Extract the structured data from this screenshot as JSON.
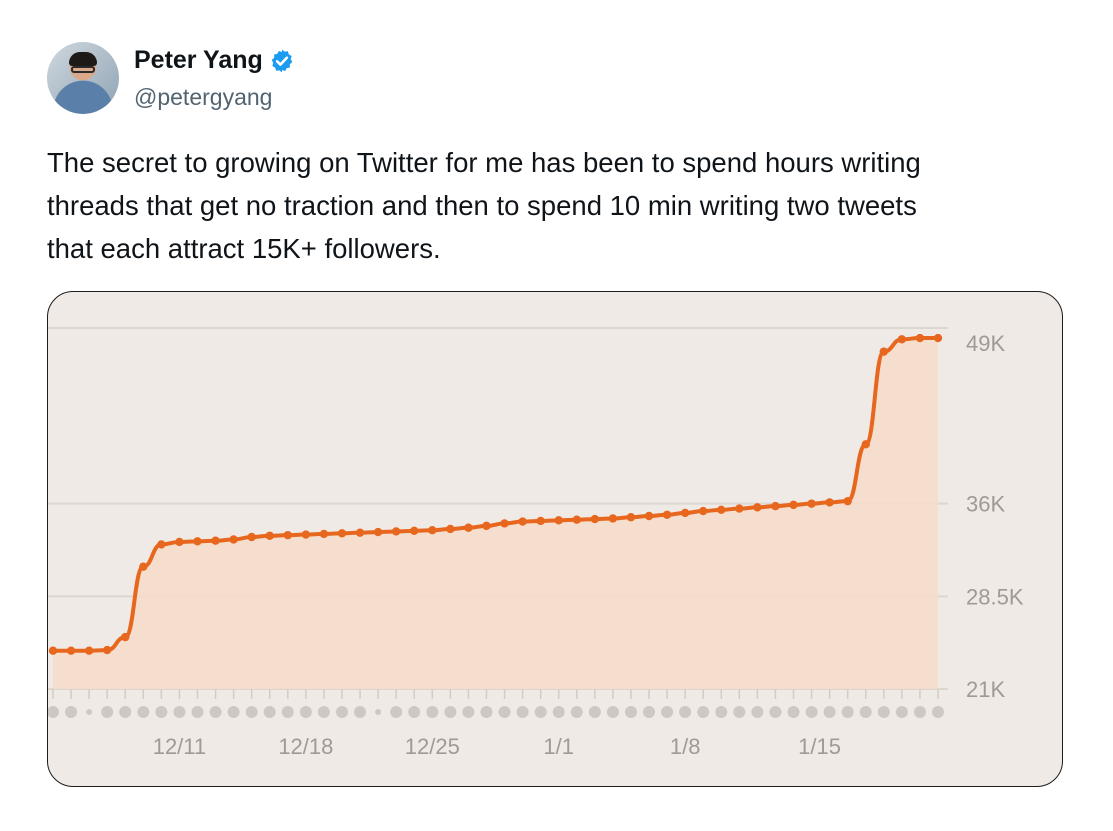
{
  "author": {
    "name": "Peter Yang",
    "handle": "@petergyang",
    "avatar_icon": "person-avatar",
    "verified_icon": "verified-badge-icon",
    "verified_color": "#1d9bf0"
  },
  "tweet": {
    "text": "The secret to growing on Twitter for me has been to spend hours writing\nthreads that get no traction and then to spend 10 min writing two tweets\nthat each attract 15K+ followers."
  },
  "chart_data": {
    "type": "area",
    "title": "",
    "xlabel": "",
    "ylabel": "",
    "x_tick_labels": [
      "12/11",
      "12/18",
      "12/25",
      "1/1",
      "1/8",
      "1/15"
    ],
    "x_tick_days": [
      7,
      14,
      21,
      28,
      35,
      42
    ],
    "y_tick_labels": [
      "49K",
      "36K",
      "28.5K",
      "21K"
    ],
    "y_tick_values": [
      49000,
      36000,
      28500,
      21000
    ],
    "ylim": [
      21000,
      50000
    ],
    "line_color": "#e8671e",
    "fill_color": "#f6dcc9",
    "grid": true,
    "series": [
      {
        "values": [
          24100,
          24100,
          24100,
          24150,
          25200,
          30900,
          32700,
          32900,
          32950,
          33000,
          33100,
          33300,
          33400,
          33450,
          33500,
          33550,
          33600,
          33650,
          33700,
          33750,
          33800,
          33850,
          33950,
          34050,
          34200,
          34400,
          34550,
          34600,
          34650,
          34700,
          34750,
          34800,
          34900,
          35000,
          35100,
          35250,
          35400,
          35500,
          35600,
          35700,
          35800,
          35900,
          36000,
          36100,
          36200,
          40800,
          48300,
          49300,
          49400,
          49400
        ]
      }
    ]
  }
}
